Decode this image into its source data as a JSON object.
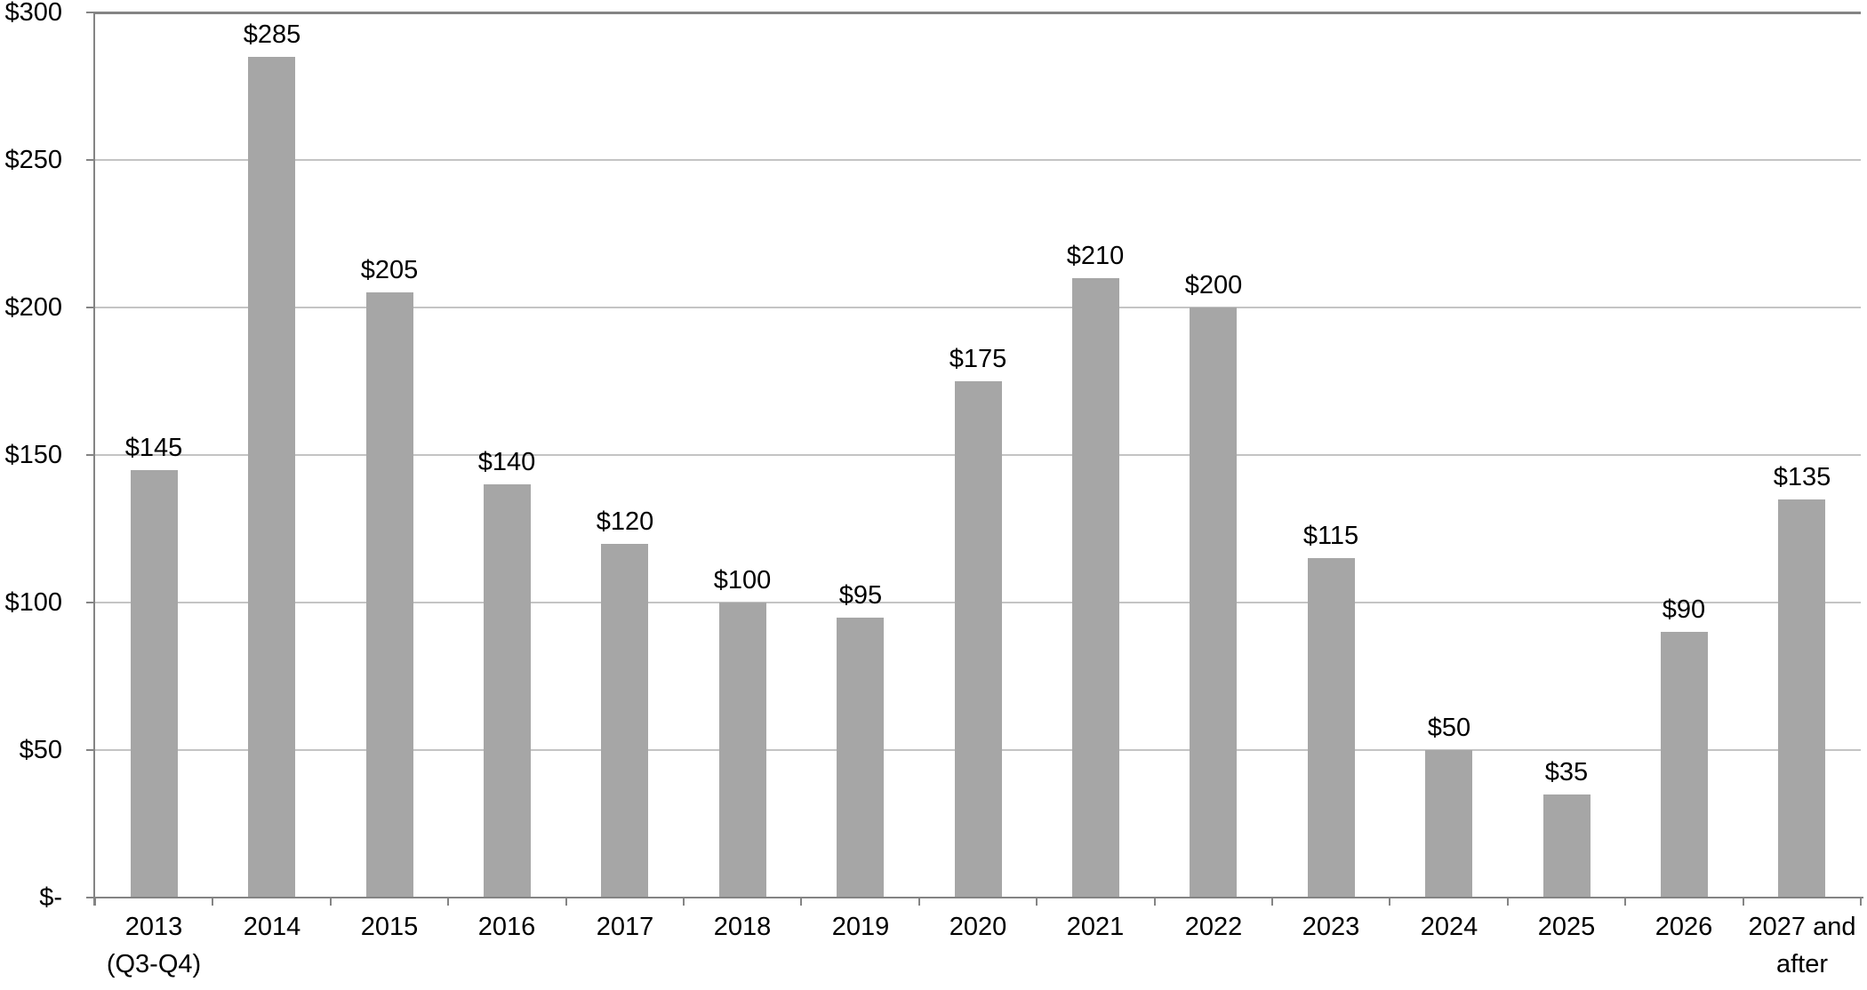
{
  "chart_data": {
    "type": "bar",
    "title": "",
    "xlabel": "",
    "ylabel": "",
    "legend": "none",
    "grid": true,
    "categories": [
      [
        "2013",
        "(Q3-Q4)"
      ],
      [
        "2014"
      ],
      [
        "2015"
      ],
      [
        "2016"
      ],
      [
        "2017"
      ],
      [
        "2018"
      ],
      [
        "2019"
      ],
      [
        "2020"
      ],
      [
        "2021"
      ],
      [
        "2022"
      ],
      [
        "2023"
      ],
      [
        "2024"
      ],
      [
        "2025"
      ],
      [
        "2026"
      ],
      [
        "2027 and",
        "after"
      ]
    ],
    "values": [
      145,
      285,
      205,
      140,
      120,
      100,
      95,
      175,
      210,
      200,
      115,
      50,
      35,
      90,
      135
    ],
    "data_labels": [
      "$145",
      "$285",
      "$205",
      "$140",
      "$120",
      "$100",
      "$95",
      "$175",
      "$210",
      "$200",
      "$115",
      "$50",
      "$35",
      "$90",
      "$135"
    ],
    "y_axis": {
      "ylim": [
        0,
        300
      ],
      "tick_values": [
        0,
        50,
        100,
        150,
        200,
        250,
        300
      ],
      "tick_labels": [
        "$-",
        "$50",
        "$100",
        "$150",
        "$200",
        "$250",
        "$300"
      ]
    },
    "colors": {
      "bar_fill": "#a6a6a6",
      "gridline": "#c4c4c4",
      "axis_line": "#848484",
      "label_text": "#000000"
    }
  }
}
